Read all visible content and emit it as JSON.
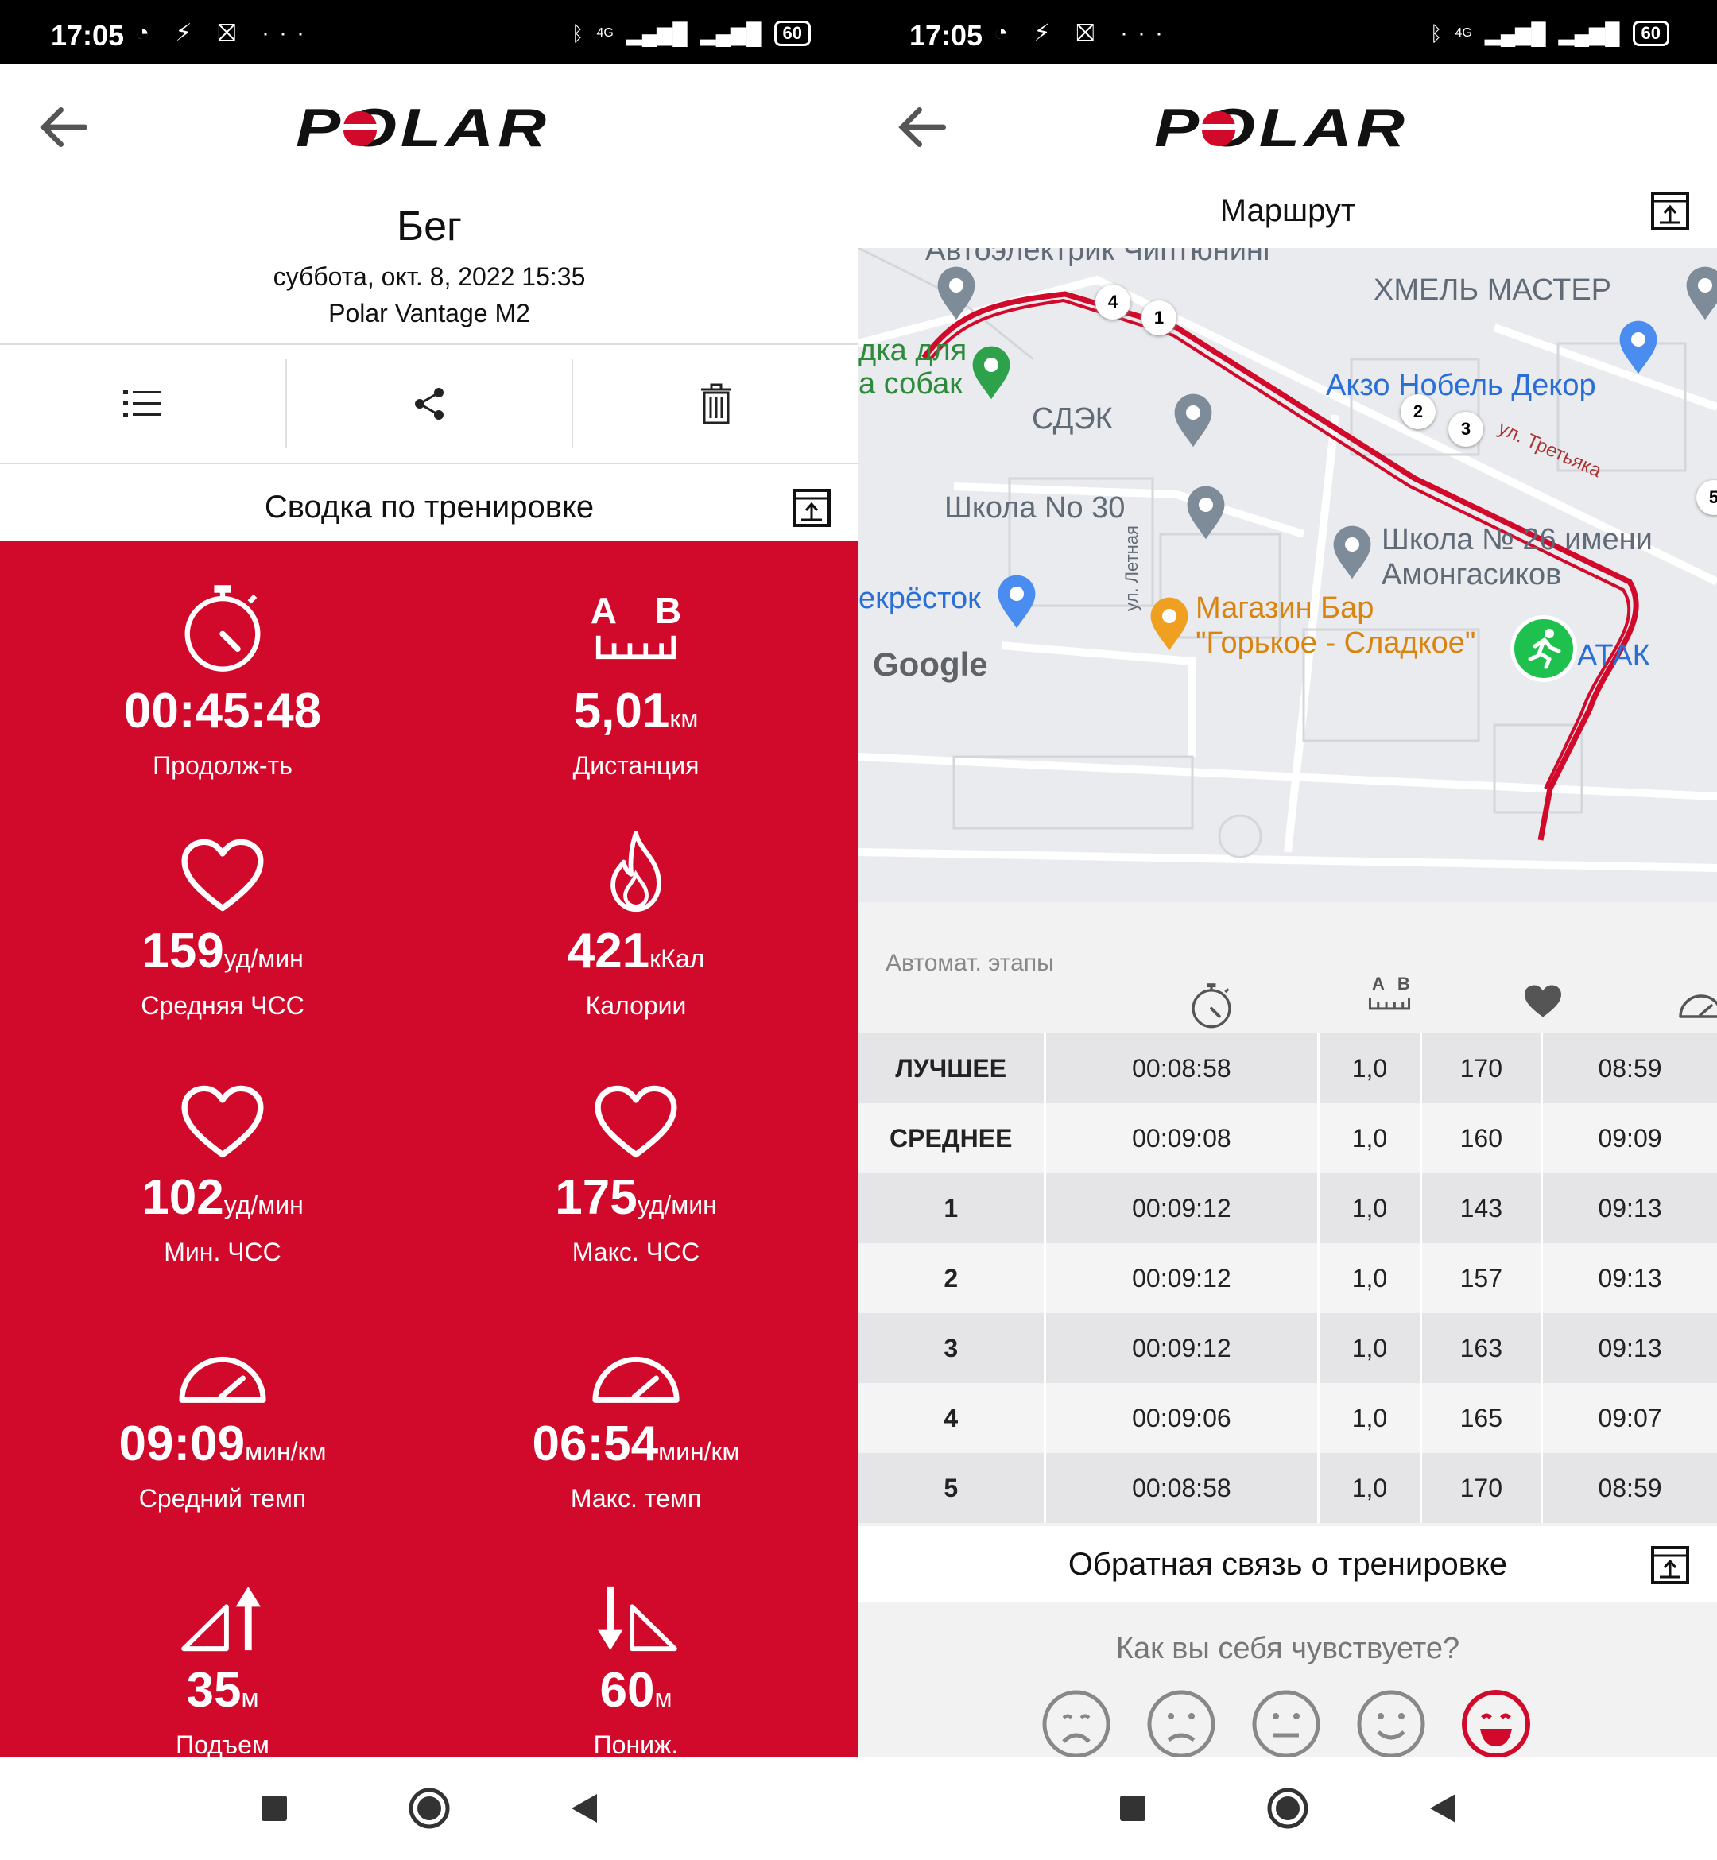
{
  "status_bar": {
    "time": "17:05",
    "battery": "60",
    "network": "4G"
  },
  "left": {
    "app_logo": "POLAR",
    "sport": "Бег",
    "date": "суббота, окт. 8, 2022 15:35",
    "device": "Polar Vantage M2",
    "section_title": "Сводка по тренировке",
    "distance_icon_labels": [
      "A",
      "B"
    ],
    "stats": [
      {
        "value": "00:45:48",
        "unit": "",
        "label": "Продолж-ть",
        "icon": "stopwatch-icon"
      },
      {
        "value": "5,01",
        "unit": "км",
        "label": "Дистанция",
        "icon": "distance-ab-icon"
      },
      {
        "value": "159",
        "unit": "уд/мин",
        "label": "Средняя ЧСС",
        "icon": "heart-icon"
      },
      {
        "value": "421",
        "unit": "кКал",
        "label": "Калории",
        "icon": "flame-icon"
      },
      {
        "value": "102",
        "unit": "уд/мин",
        "label": "Мин. ЧСС",
        "icon": "heart-icon"
      },
      {
        "value": "175",
        "unit": "уд/мин",
        "label": "Макс. ЧСС",
        "icon": "heart-icon"
      },
      {
        "value": "09:09",
        "unit": "мин/км",
        "label": "Средний темп",
        "icon": "speedometer-icon"
      },
      {
        "value": "06:54",
        "unit": "мин/км",
        "label": "Макс. темп",
        "icon": "speedometer-icon"
      },
      {
        "value": "35",
        "unit": "м",
        "label": "Подъем",
        "icon": "ascent-icon"
      },
      {
        "value": "60",
        "unit": "м",
        "label": "Пониж.",
        "icon": "descent-icon"
      }
    ]
  },
  "right": {
    "app_logo": "POLAR",
    "route_title": "Маршрут",
    "map": {
      "labels": [
        "Автоэлектрик Чиптюнинг",
        "ХМЕЛЬ МАСТЕР",
        "дка для",
        "а собак",
        "Акзо Нобель Декор",
        "СДЭК",
        "ул. Третьяка",
        "Школа No 30",
        "Школа № 26 имени",
        "Амонгасиков",
        "ул. Летная",
        "екрёсток",
        "Магазин Бар",
        "\"Горькое - Сладкое\"",
        "АТАК"
      ],
      "google_label": "Google",
      "markers": [
        "1",
        "2",
        "3",
        "4",
        "5"
      ]
    },
    "laps_title": "Автомат. этапы",
    "lap_header_icons": [
      "stopwatch-icon",
      "distance-ab-icon",
      "heart-icon",
      "speedometer-icon"
    ],
    "distance_icon_labels": [
      "A",
      "B"
    ],
    "lap_rows": [
      {
        "label": "ЛУЧШЕЕ",
        "time": "00:08:58",
        "dist": "1,0",
        "hr": "170",
        "pace": "08:59"
      },
      {
        "label": "СРЕДНЕЕ",
        "time": "00:09:08",
        "dist": "1,0",
        "hr": "160",
        "pace": "09:09"
      },
      {
        "label": "1",
        "time": "00:09:12",
        "dist": "1,0",
        "hr": "143",
        "pace": "09:13"
      },
      {
        "label": "2",
        "time": "00:09:12",
        "dist": "1,0",
        "hr": "157",
        "pace": "09:13"
      },
      {
        "label": "3",
        "time": "00:09:12",
        "dist": "1,0",
        "hr": "163",
        "pace": "09:13"
      },
      {
        "label": "4",
        "time": "00:09:06",
        "dist": "1,0",
        "hr": "165",
        "pace": "09:07"
      },
      {
        "label": "5",
        "time": "00:08:58",
        "dist": "1,0",
        "hr": "170",
        "pace": "08:59"
      }
    ],
    "feedback_title": "Обратная связь о тренировке",
    "feel_question": "Как вы себя чувствуете?",
    "moods": [
      "very-sad",
      "sad",
      "neutral",
      "happy",
      "very-happy"
    ],
    "selected_mood": "very-happy"
  },
  "colors": {
    "accent": "#d10a2c",
    "text": "#111111",
    "muted": "#888888",
    "route": "#d10a2c",
    "map_bg": "#eaebee"
  }
}
